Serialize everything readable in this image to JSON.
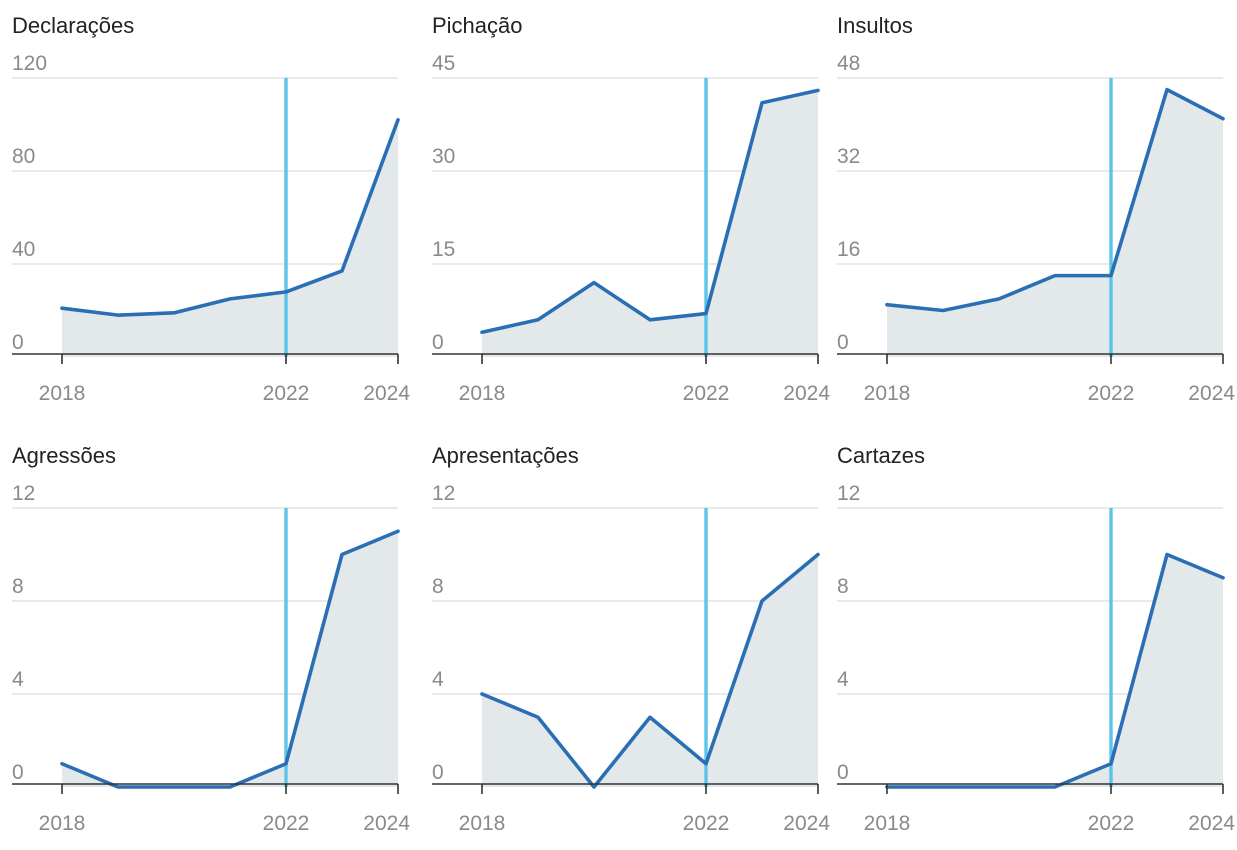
{
  "colors": {
    "line": "#2a6fb5",
    "area": "#e3e9ea",
    "marker": "#5bc4ea"
  },
  "chart_data": [
    {
      "type": "area",
      "title": "Declarações",
      "x": [
        2018,
        2019,
        2020,
        2021,
        2022,
        2023,
        2024
      ],
      "xticks": [
        2018,
        2022,
        2024
      ],
      "marker_x": 2022,
      "ylim": [
        0,
        120
      ],
      "yticks": [
        0,
        40,
        80,
        120
      ],
      "values": [
        21,
        18,
        19,
        25,
        28,
        37,
        102
      ]
    },
    {
      "type": "area",
      "title": "Pichação",
      "x": [
        2018,
        2019,
        2020,
        2021,
        2022,
        2023,
        2024
      ],
      "xticks": [
        2018,
        2022,
        2024
      ],
      "marker_x": 2022,
      "ylim": [
        0,
        45
      ],
      "yticks": [
        0,
        15,
        30,
        45
      ],
      "values": [
        4,
        6,
        12,
        6,
        7,
        41,
        43
      ]
    },
    {
      "type": "area",
      "title": "Insultos",
      "x": [
        2018,
        2019,
        2020,
        2021,
        2022,
        2023,
        2024
      ],
      "xticks": [
        2018,
        2022,
        2024
      ],
      "marker_x": 2022,
      "ylim": [
        0,
        48
      ],
      "yticks": [
        0,
        16,
        32,
        48
      ],
      "values": [
        9,
        8,
        10,
        14,
        14,
        46,
        41
      ]
    },
    {
      "type": "area",
      "title": "Agressões",
      "x": [
        2018,
        2019,
        2020,
        2021,
        2022,
        2023,
        2024
      ],
      "xticks": [
        2018,
        2022,
        2024
      ],
      "marker_x": 2022,
      "ylim": [
        0,
        12
      ],
      "yticks": [
        0,
        4,
        8,
        12
      ],
      "values": [
        1,
        0,
        0,
        0,
        1,
        10,
        11
      ]
    },
    {
      "type": "area",
      "title": "Apresentações",
      "x": [
        2018,
        2019,
        2020,
        2021,
        2022,
        2023,
        2024
      ],
      "xticks": [
        2018,
        2022,
        2024
      ],
      "marker_x": 2022,
      "ylim": [
        0,
        12
      ],
      "yticks": [
        0,
        4,
        8,
        12
      ],
      "values": [
        4,
        3,
        0,
        3,
        1,
        8,
        10
      ]
    },
    {
      "type": "area",
      "title": "Cartazes",
      "x": [
        2018,
        2019,
        2020,
        2021,
        2022,
        2023,
        2024
      ],
      "xticks": [
        2018,
        2022,
        2024
      ],
      "marker_x": 2022,
      "ylim": [
        0,
        12
      ],
      "yticks": [
        0,
        4,
        8,
        12
      ],
      "values": [
        0,
        0,
        0,
        0,
        1,
        10,
        9
      ]
    }
  ]
}
